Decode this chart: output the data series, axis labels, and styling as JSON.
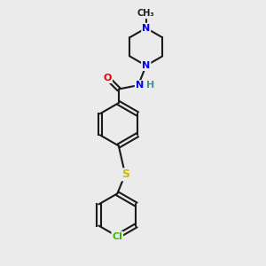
{
  "background_color": "#ebebeb",
  "bond_color": "#1a1a1a",
  "atom_colors": {
    "N": "#0000ee",
    "O": "#ee0000",
    "S": "#ccbb00",
    "Cl": "#33bb00",
    "H": "#4a9090",
    "C": "#1a1a1a"
  },
  "figsize": [
    3.0,
    3.0
  ],
  "dpi": 100
}
